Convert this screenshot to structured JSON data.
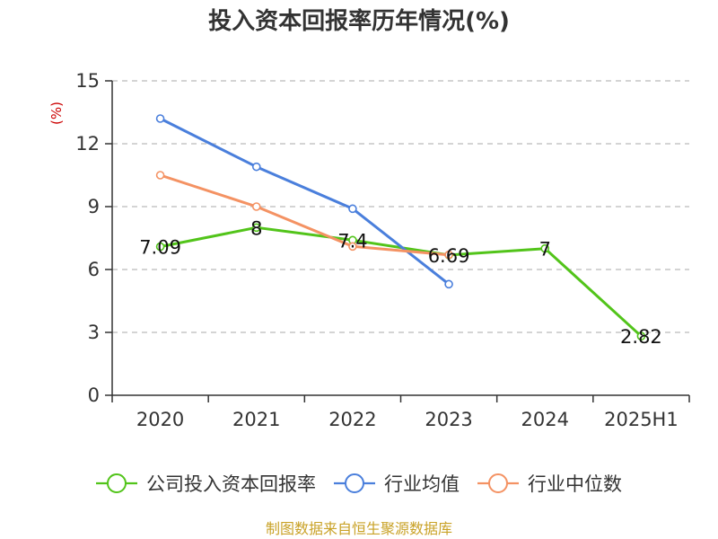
{
  "colors": {
    "company": "#52c41a",
    "industry_avg": "#4a7fdc",
    "industry_median": "#f49263",
    "grid": "#bbbbbb",
    "axis": "#333333",
    "unit": "#cc0000",
    "source": "#c9a227"
  },
  "chart_data": {
    "type": "line",
    "title": "投入资本回报率历年情况(%)",
    "ylabel": "(%)",
    "xlabel": "",
    "categories": [
      "2020",
      "2021",
      "2022",
      "2023",
      "2024",
      "2025H1"
    ],
    "ylim": [
      0,
      15
    ],
    "yticks": [
      0,
      3,
      6,
      9,
      12,
      15
    ],
    "grid": true,
    "legend_position": "bottom",
    "series": [
      {
        "name": "公司投入资本回报率",
        "color_key": "company",
        "values": [
          7.09,
          8,
          7.4,
          6.69,
          7,
          2.82
        ],
        "labels": [
          "7.09",
          "8",
          "7.4",
          "6.69",
          "7",
          "2.82"
        ]
      },
      {
        "name": "行业均值",
        "color_key": "industry_avg",
        "values": [
          13.2,
          10.9,
          8.9,
          5.3,
          null,
          null
        ]
      },
      {
        "name": "行业中位数",
        "color_key": "industry_median",
        "values": [
          10.5,
          9.0,
          7.1,
          6.7,
          null,
          null
        ]
      }
    ]
  },
  "footer": {
    "source": "制图数据来自恒生聚源数据库"
  }
}
